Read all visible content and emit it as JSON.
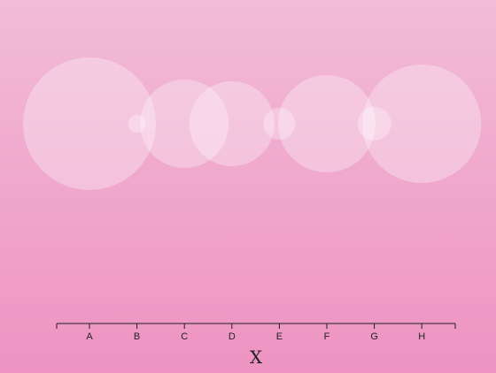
{
  "chart_data": {
    "type": "scatter",
    "subtype": "bubble",
    "categories": [
      "A",
      "B",
      "C",
      "D",
      "E",
      "F",
      "G",
      "H"
    ],
    "xlabel": "X",
    "ylabel": "",
    "title": "",
    "grid": false,
    "bubble_color": "#ffffff",
    "bubble_opacity": 0.3,
    "y_range": [
      0,
      1
    ],
    "series": [
      {
        "points": [
          {
            "x": "A",
            "y": 0.5,
            "size": 75
          },
          {
            "x": "B",
            "y": 0.5,
            "size": 10
          },
          {
            "x": "C",
            "y": 0.5,
            "size": 50
          },
          {
            "x": "D",
            "y": 0.5,
            "size": 48
          },
          {
            "x": "E",
            "y": 0.5,
            "size": 18
          },
          {
            "x": "F",
            "y": 0.5,
            "size": 55
          },
          {
            "x": "G",
            "y": 0.5,
            "size": 19
          },
          {
            "x": "H",
            "y": 0.5,
            "size": 67
          }
        ]
      }
    ]
  }
}
